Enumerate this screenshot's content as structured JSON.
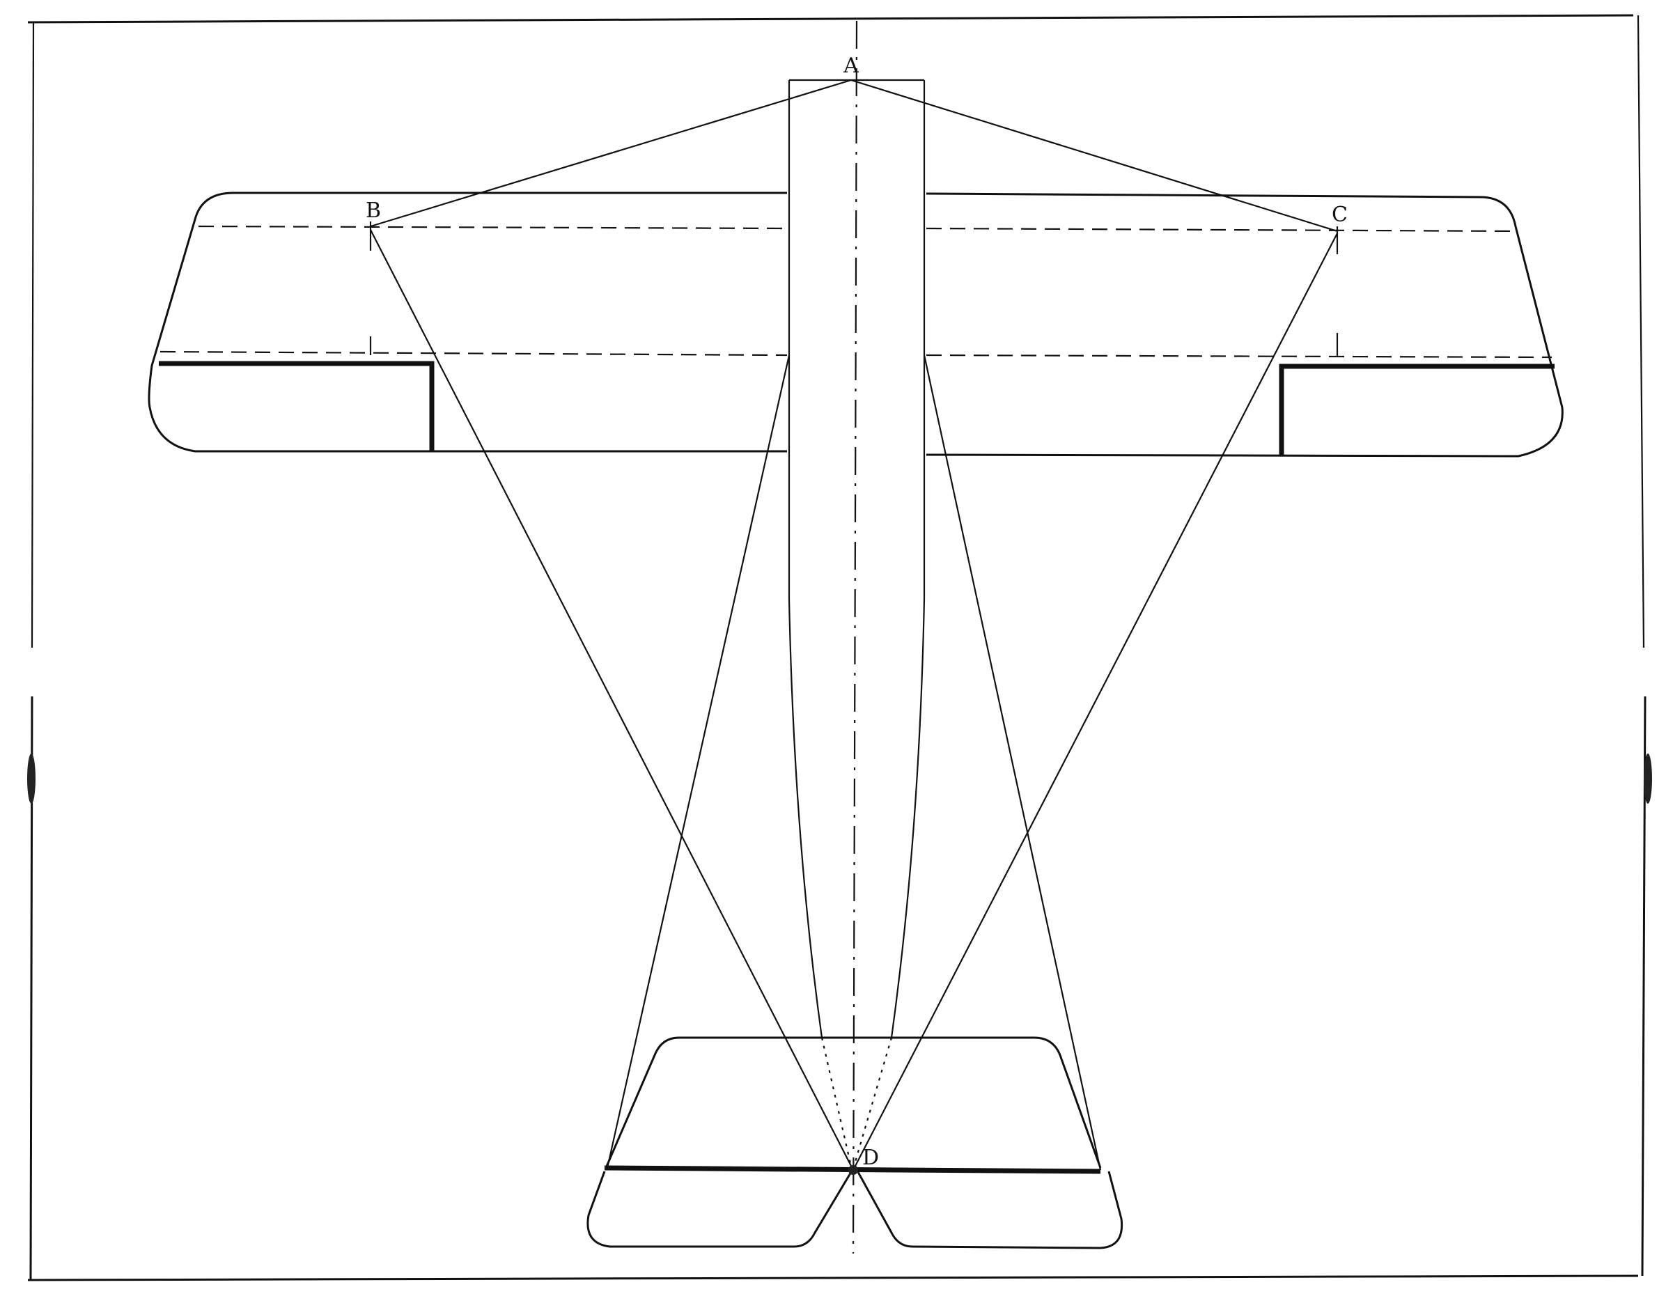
{
  "diagram": {
    "points": {
      "a": "A",
      "b": "B",
      "c": "C",
      "d": "D"
    },
    "ink_color": "#111111",
    "background_color": "#ffffff"
  }
}
